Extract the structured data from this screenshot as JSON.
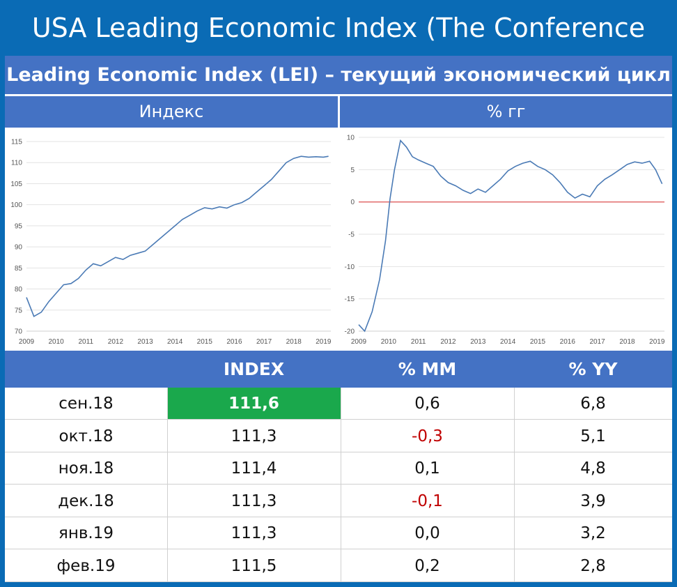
{
  "title": "USA Leading Economic Index (The Conference Board)",
  "subtitle": "Leading Economic Index (LEI) – текущий экономический цикл",
  "chart_headers": {
    "left": "Индекс",
    "right": "% гг"
  },
  "colors": {
    "background": "#0a6bb5",
    "header": "#4472c4",
    "highlight": "#1aa84c",
    "negative": "#c00000",
    "line": "#4a7ab5",
    "zero_line": "#e06060"
  },
  "chart_data": [
    {
      "type": "line",
      "title": "Индекс",
      "x_ticks": [
        "2009",
        "2010",
        "2011",
        "2012",
        "2013",
        "2014",
        "2015",
        "2016",
        "2017",
        "2018",
        "2019"
      ],
      "y_ticks": [
        70,
        75,
        80,
        85,
        90,
        95,
        100,
        105,
        110,
        115
      ],
      "ylim": [
        70,
        115
      ],
      "xlim": [
        2009.0,
        2019.25
      ],
      "grid": true,
      "x": [
        2009.0,
        2009.25,
        2009.5,
        2009.75,
        2010.0,
        2010.25,
        2010.5,
        2010.75,
        2011.0,
        2011.25,
        2011.5,
        2011.75,
        2012.0,
        2012.25,
        2012.5,
        2012.75,
        2013.0,
        2013.25,
        2013.5,
        2013.75,
        2014.0,
        2014.25,
        2014.5,
        2014.75,
        2015.0,
        2015.25,
        2015.5,
        2015.75,
        2016.0,
        2016.25,
        2016.5,
        2016.75,
        2017.0,
        2017.25,
        2017.5,
        2017.75,
        2018.0,
        2018.25,
        2018.5,
        2018.75,
        2019.0,
        2019.17
      ],
      "y": [
        78.0,
        73.5,
        74.5,
        77.0,
        79.0,
        81.0,
        81.3,
        82.5,
        84.5,
        86.0,
        85.5,
        86.5,
        87.5,
        87.0,
        88.0,
        88.5,
        89.0,
        90.5,
        92.0,
        93.5,
        95.0,
        96.5,
        97.5,
        98.5,
        99.3,
        99.0,
        99.5,
        99.2,
        100.0,
        100.5,
        101.5,
        103.0,
        104.5,
        106.0,
        108.0,
        110.0,
        111.0,
        111.5,
        111.3,
        111.4,
        111.3,
        111.5
      ]
    },
    {
      "type": "line",
      "title": "% гг",
      "x_ticks": [
        "2009",
        "2010",
        "2011",
        "2012",
        "2013",
        "2014",
        "2015",
        "2016",
        "2017",
        "2018",
        "2019"
      ],
      "y_ticks": [
        -20,
        -15,
        -10,
        -5,
        0,
        5,
        10
      ],
      "ylim": [
        -20,
        10
      ],
      "xlim": [
        2009.0,
        2019.25
      ],
      "reference_line": 0,
      "grid": true,
      "x": [
        2009.0,
        2009.2,
        2009.45,
        2009.7,
        2009.9,
        2010.05,
        2010.2,
        2010.4,
        2010.6,
        2010.8,
        2011.0,
        2011.25,
        2011.5,
        2011.75,
        2012.0,
        2012.25,
        2012.5,
        2012.75,
        2013.0,
        2013.25,
        2013.5,
        2013.75,
        2014.0,
        2014.25,
        2014.5,
        2014.75,
        2015.0,
        2015.25,
        2015.5,
        2015.75,
        2016.0,
        2016.25,
        2016.5,
        2016.75,
        2017.0,
        2017.25,
        2017.5,
        2017.75,
        2018.0,
        2018.25,
        2018.5,
        2018.75,
        2018.95,
        2019.17
      ],
      "y": [
        -19.0,
        -20.0,
        -17.0,
        -12.0,
        -6.0,
        0.5,
        5.0,
        9.5,
        8.5,
        7.0,
        6.5,
        6.0,
        5.5,
        4.0,
        3.0,
        2.5,
        1.8,
        1.3,
        2.0,
        1.5,
        2.5,
        3.5,
        4.8,
        5.5,
        6.0,
        6.3,
        5.5,
        5.0,
        4.2,
        3.0,
        1.5,
        0.6,
        1.2,
        0.8,
        2.5,
        3.5,
        4.2,
        5.0,
        5.8,
        6.2,
        6.0,
        6.3,
        5.0,
        2.8
      ]
    }
  ],
  "table": {
    "headers": [
      "",
      "INDEX",
      "% MM",
      "% YY"
    ],
    "rows": [
      {
        "month": "сен.18",
        "index": "111,6",
        "mm": "0,6",
        "yy": "6,8",
        "highlight": true,
        "mm_negative": false
      },
      {
        "month": "окт.18",
        "index": "111,3",
        "mm": "-0,3",
        "yy": "5,1",
        "highlight": false,
        "mm_negative": true
      },
      {
        "month": "ноя.18",
        "index": "111,4",
        "mm": "0,1",
        "yy": "4,8",
        "highlight": false,
        "mm_negative": false
      },
      {
        "month": "дек.18",
        "index": "111,3",
        "mm": "-0,1",
        "yy": "3,9",
        "highlight": false,
        "mm_negative": true
      },
      {
        "month": "янв.19",
        "index": "111,3",
        "mm": "0,0",
        "yy": "3,2",
        "highlight": false,
        "mm_negative": false
      },
      {
        "month": "фев.19",
        "index": "111,5",
        "mm": "0,2",
        "yy": "2,8",
        "highlight": false,
        "mm_negative": false
      }
    ]
  }
}
